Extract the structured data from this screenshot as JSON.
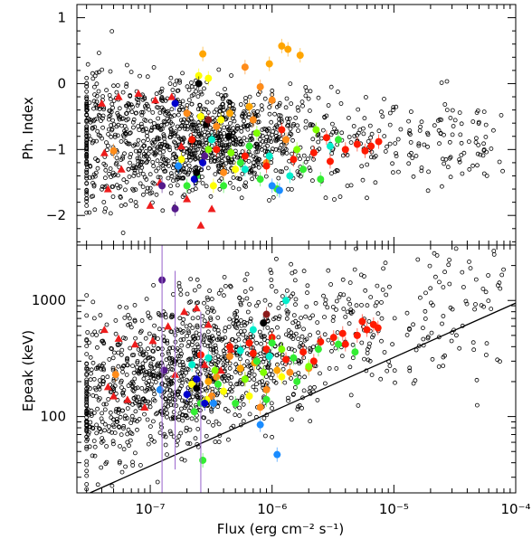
{
  "chart_data": [
    {
      "type": "scatter",
      "panel": "top",
      "title": "",
      "xlabel": "",
      "ylabel": "Ph. Index",
      "xscale": "log",
      "xlim": [
        2.5e-08,
        0.0001
      ],
      "ylim": [
        -2.45,
        1.2
      ],
      "yticks": [
        1,
        0,
        -1,
        -2
      ],
      "ytick_labels": [
        "1",
        "0",
        "−1",
        "−2"
      ],
      "grid": false,
      "background_cloud": {
        "marker": "open circle",
        "color": "#000000",
        "count": 1400,
        "x_range": [
          3e-08,
          8e-05
        ],
        "y_center": -0.85,
        "y_spread": 0.35
      },
      "series": [
        {
          "marker": "triangle",
          "color": "#ee1c1c",
          "points": [
            [
              4e-08,
              -0.3
            ],
            [
              5.5e-08,
              -0.2
            ],
            [
              8e-08,
              -0.15
            ],
            [
              1.1e-07,
              -0.25
            ],
            [
              1.5e-07,
              -0.2
            ],
            [
              4.2e-08,
              -1.05
            ],
            [
              5.8e-08,
              -1.3
            ],
            [
              4.5e-08,
              -1.6
            ],
            [
              1e-07,
              -1.85
            ],
            [
              1.2e-07,
              -1.5
            ],
            [
              2e-07,
              -1.75
            ],
            [
              2.6e-07,
              -2.15
            ],
            [
              3.2e-07,
              -1.9
            ],
            [
              1.8e-07,
              -0.95
            ]
          ]
        },
        {
          "marker": "circle",
          "color": "#ff8c1a",
          "points": [
            [
              5e-08,
              -1.02
            ],
            [
              2e-07,
              -0.45
            ],
            [
              3.5e-07,
              -0.65
            ],
            [
              7e-07,
              -0.55
            ],
            [
              1.3e-06,
              -0.85
            ],
            [
              6e-07,
              0.25
            ],
            [
              8e-07,
              -0.05
            ],
            [
              1e-06,
              -0.25
            ],
            [
              4e-07,
              -1.35
            ],
            [
              9e-07,
              -1.2
            ]
          ]
        },
        {
          "marker": "circle",
          "color": "#ffa500",
          "points": [
            [
              2.7e-07,
              0.45
            ],
            [
              9.5e-07,
              0.3
            ],
            [
              1.2e-06,
              0.57
            ],
            [
              1.35e-06,
              0.52
            ],
            [
              1.7e-06,
              0.43
            ],
            [
              6.5e-07,
              -0.35
            ],
            [
              4.5e-07,
              -0.45
            ]
          ]
        },
        {
          "marker": "circle",
          "color": "#ffff00",
          "points": [
            [
              2.5e-07,
              0.12
            ],
            [
              3e-07,
              0.08
            ],
            [
              2.6e-07,
              -0.5
            ],
            [
              3.8e-07,
              -0.55
            ],
            [
              1.8e-07,
              -1.15
            ],
            [
              5e-07,
              -1.3
            ],
            [
              3.3e-07,
              -1.55
            ]
          ]
        },
        {
          "marker": "circle",
          "color": "#ff1a00",
          "points": [
            [
              2.2e-07,
              -0.85
            ],
            [
              3.5e-07,
              -1.0
            ],
            [
              6e-07,
              -1.1
            ],
            [
              9e-07,
              -1.25
            ],
            [
              1.5e-06,
              -1.15
            ],
            [
              2.2e-06,
              -1.05
            ],
            [
              3e-06,
              -1.18
            ],
            [
              4e-06,
              -1.0
            ],
            [
              5e-06,
              -0.92
            ],
            [
              6.5e-06,
              -0.95
            ],
            [
              7.5e-06,
              -0.88
            ],
            [
              2.8e-06,
              -0.82
            ],
            [
              1.2e-06,
              -0.7
            ],
            [
              5.8e-06,
              -1.02
            ]
          ]
        },
        {
          "marker": "circle",
          "color": "#33ee33",
          "points": [
            [
              2.4e-07,
              -1.4
            ],
            [
              4e-07,
              -1.55
            ],
            [
              5.5e-07,
              -1.2
            ],
            [
              8e-07,
              -1.45
            ],
            [
              1.1e-06,
              -1.6
            ],
            [
              1.8e-06,
              -1.3
            ],
            [
              2.5e-06,
              -1.45
            ],
            [
              3.5e-06,
              -0.85
            ],
            [
              2e-07,
              -1.55
            ],
            [
              6.5e-07,
              -0.95
            ]
          ]
        },
        {
          "marker": "circle",
          "color": "#7fff00",
          "points": [
            [
              3e-07,
              -1.0
            ],
            [
              4.6e-07,
              -1.05
            ],
            [
              7.5e-07,
              -0.75
            ],
            [
              1.6e-06,
              -1.0
            ],
            [
              2.3e-06,
              -0.7
            ]
          ]
        },
        {
          "marker": "circle",
          "color": "#00eecc",
          "points": [
            [
              3.2e-07,
              -0.85
            ],
            [
              6e-07,
              -1.3
            ],
            [
              9.5e-07,
              -1.1
            ],
            [
              1.4e-06,
              -1.4
            ],
            [
              3e-06,
              -0.95
            ]
          ]
        },
        {
          "marker": "circle",
          "color": "#1a8cff",
          "points": [
            [
              1.7e-07,
              -1.25
            ],
            [
              1e-06,
              -1.55
            ],
            [
              1.15e-06,
              -1.62
            ]
          ]
        },
        {
          "marker": "circle",
          "color": "#0000cc",
          "points": [
            [
              1.6e-07,
              -0.3
            ],
            [
              2.3e-07,
              -1.45
            ],
            [
              2.7e-07,
              -1.2
            ]
          ]
        },
        {
          "marker": "circle",
          "color": "#551a8b",
          "points": [
            [
              1.25e-07,
              -1.55
            ],
            [
              1.6e-07,
              -1.9
            ],
            [
              2.8e-07,
              -1.1
            ]
          ]
        },
        {
          "marker": "circle",
          "color": "#000000",
          "points": [
            [
              2.5e-07,
              0.0
            ],
            [
              2.9e-07,
              -0.62
            ],
            [
              2.4e-07,
              -1.35
            ],
            [
              4.4e-07,
              -0.8
            ]
          ]
        },
        {
          "marker": "circle",
          "color": "#8b1a1a",
          "points": [
            [
              3e-07,
              -0.55
            ]
          ]
        }
      ]
    },
    {
      "type": "scatter",
      "panel": "bottom",
      "title": "",
      "xlabel": "Flux (erg cm⁻² s⁻¹)",
      "ylabel": "Epeak (keV)",
      "xscale": "log",
      "yscale": "log",
      "xlim": [
        2.5e-08,
        0.0001
      ],
      "ylim": [
        22,
        3000
      ],
      "yticks": [
        100,
        1000
      ],
      "ytick_labels": [
        "100",
        "1000"
      ],
      "xticks": [
        1e-07,
        1e-06,
        1e-05,
        0.0001
      ],
      "xtick_labels": [
        "10⁻⁷",
        "10⁻⁶",
        "10⁻⁵",
        "10⁻⁴"
      ],
      "grid": false,
      "reference_line": {
        "x": [
          3.2e-08,
          0.0001
        ],
        "y": [
          22,
          950
        ],
        "color": "#000000"
      },
      "background_cloud": {
        "marker": "open circle",
        "color": "#000000",
        "count": 1400,
        "x_range": [
          3e-08,
          8e-05
        ],
        "log_y_center": 2.45,
        "log_y_spread": 0.32
      },
      "series": [
        {
          "marker": "triangle",
          "color": "#ee1c1c",
          "points": [
            [
              4.2e-08,
              560
            ],
            [
              5.5e-08,
              470
            ],
            [
              7.5e-08,
              420
            ],
            [
              1.05e-07,
              450
            ],
            [
              1.4e-07,
              600
            ],
            [
              1.9e-07,
              800
            ],
            [
              2.4e-07,
              860
            ],
            [
              3e-07,
              620
            ],
            [
              4.5e-08,
              180
            ],
            [
              5e-08,
              150
            ],
            [
              6.5e-08,
              140
            ],
            [
              9e-08,
              120
            ],
            [
              1.6e-07,
              230
            ],
            [
              2.8e-07,
              280
            ],
            [
              3.8e-07,
              250
            ],
            [
              4.6e-07,
              380
            ]
          ]
        },
        {
          "marker": "circle",
          "color": "#ff8c1a",
          "points": [
            [
              5.2e-08,
              230
            ],
            [
              3.5e-07,
              220
            ],
            [
              6e-07,
              210
            ],
            [
              9e-07,
              170
            ],
            [
              1.4e-06,
              240
            ],
            [
              2e-06,
              260
            ],
            [
              3.2e-07,
              150
            ],
            [
              8e-07,
              120
            ],
            [
              4.5e-07,
              330
            ]
          ]
        },
        {
          "marker": "circle",
          "color": "#ffa500",
          "points": [
            [
              3e-07,
              200
            ],
            [
              5.5e-07,
              260
            ],
            [
              7.2e-07,
              290
            ],
            [
              1.1e-06,
              250
            ]
          ]
        },
        {
          "marker": "circle",
          "color": "#ffff00",
          "points": [
            [
              2.2e-07,
              190
            ],
            [
              2.9e-07,
              140
            ],
            [
              4e-07,
              165
            ],
            [
              6.5e-07,
              150
            ],
            [
              1.2e-06,
              220
            ]
          ]
        },
        {
          "marker": "circle",
          "color": "#ff1a00",
          "points": [
            [
              2.6e-07,
              340
            ],
            [
              4.5e-07,
              400
            ],
            [
              6.5e-07,
              430
            ],
            [
              9e-07,
              380
            ],
            [
              1.3e-06,
              310
            ],
            [
              1.8e-06,
              360
            ],
            [
              2.5e-06,
              440
            ],
            [
              3.2e-06,
              480
            ],
            [
              4e-06,
              420
            ],
            [
              5e-06,
              500
            ],
            [
              6e-06,
              560
            ],
            [
              6.8e-06,
              620
            ],
            [
              7.4e-06,
              580
            ],
            [
              5.5e-06,
              660
            ],
            [
              3.8e-06,
              520
            ],
            [
              2.2e-06,
              300
            ],
            [
              1e-06,
              480
            ],
            [
              7e-07,
              350
            ]
          ]
        },
        {
          "marker": "circle",
          "color": "#33ee33",
          "points": [
            [
              2.6e-07,
              130
            ],
            [
              3.6e-07,
              190
            ],
            [
              5e-07,
              130
            ],
            [
              7.5e-07,
              300
            ],
            [
              1e-06,
              430
            ],
            [
              1.5e-06,
              320
            ],
            [
              2.4e-06,
              380
            ],
            [
              3.5e-06,
              420
            ],
            [
              4.8e-06,
              360
            ],
            [
              2.3e-07,
              110
            ],
            [
              2.7e-07,
              42
            ],
            [
              9e-07,
              140
            ],
            [
              1.6e-06,
              200
            ]
          ]
        },
        {
          "marker": "circle",
          "color": "#7fff00",
          "points": [
            [
              3.4e-07,
              250
            ],
            [
              6e-07,
              210
            ],
            [
              8.5e-07,
              240
            ],
            [
              1.2e-06,
              380
            ],
            [
              2e-06,
              270
            ]
          ]
        },
        {
          "marker": "circle",
          "color": "#00eecc",
          "points": [
            [
              2.2e-07,
              280
            ],
            [
              5.5e-07,
              370
            ],
            [
              9.5e-07,
              330
            ],
            [
              1.3e-06,
              1000
            ],
            [
              7e-07,
              560
            ],
            [
              3e-07,
              320
            ]
          ]
        },
        {
          "marker": "circle",
          "color": "#1a8cff",
          "points": [
            [
              1.2e-07,
              170
            ],
            [
              8e-07,
              85
            ],
            [
              1.1e-06,
              47
            ],
            [
              3.3e-07,
              130
            ]
          ]
        },
        {
          "marker": "circle",
          "color": "#0000cc",
          "points": [
            [
              2.4e-07,
              210
            ],
            [
              2.8e-07,
              130
            ],
            [
              2e-07,
              155
            ]
          ]
        },
        {
          "marker": "circle",
          "color": "#551a8b",
          "points": [
            [
              1.25e-07,
              1500
            ],
            [
              1.3e-07,
              250
            ]
          ]
        },
        {
          "marker": "circle",
          "color": "#000000",
          "points": [
            [
              2.4e-07,
              175
            ],
            [
              8.5e-07,
              640
            ]
          ]
        },
        {
          "marker": "circle",
          "color": "#8b1a1a",
          "points": [
            [
              9e-07,
              760
            ]
          ]
        }
      ]
    }
  ]
}
